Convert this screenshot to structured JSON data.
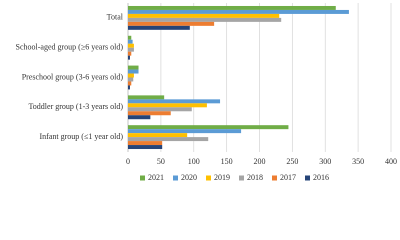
{
  "chart_data": {
    "type": "bar",
    "orientation": "horizontal",
    "categories": [
      "Infant group (≤1 year old)",
      "Toddler group (1-3 years old)",
      "Preschool group (3-6 years old)",
      "School-aged group (≥6 years old)",
      "Total"
    ],
    "series": [
      {
        "name": "2021",
        "color": "#70ad47",
        "values": [
          244,
          55,
          16,
          5,
          316
        ]
      },
      {
        "name": "2020",
        "color": "#5b9bd5",
        "values": [
          172,
          140,
          16,
          7,
          336
        ]
      },
      {
        "name": "2019",
        "color": "#ffc000",
        "values": [
          90,
          120,
          9,
          9,
          230
        ]
      },
      {
        "name": "2018",
        "color": "#a5a5a5",
        "values": [
          122,
          97,
          8,
          9,
          233
        ]
      },
      {
        "name": "2017",
        "color": "#ed7d31",
        "values": [
          52,
          65,
          5,
          5,
          131
        ]
      },
      {
        "name": "2016",
        "color": "#264478",
        "values": [
          52,
          34,
          3,
          3,
          94
        ]
      }
    ],
    "xlim": [
      0,
      400
    ],
    "xticks": [
      0,
      50,
      100,
      150,
      200,
      250,
      300,
      350,
      400
    ],
    "grid": true,
    "legend": "bottom"
  }
}
